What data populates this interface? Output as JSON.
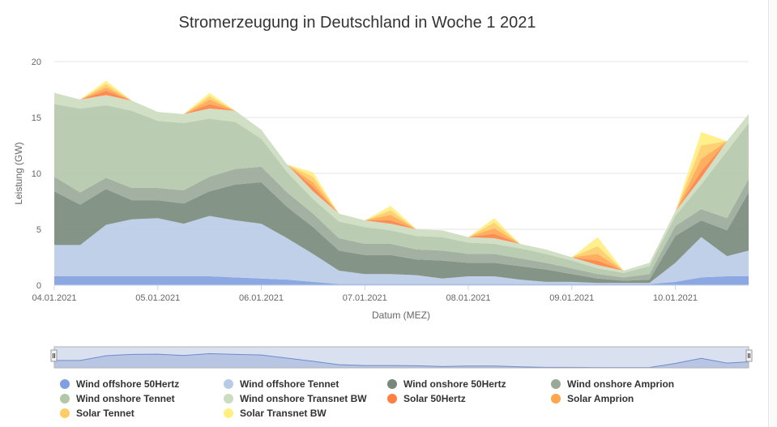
{
  "chart_data": {
    "type": "area",
    "stacked": true,
    "title": "Stromerzeugung in Deutschland in Woche 1 2021",
    "xlabel": "Datum (MEZ)",
    "ylabel": "Leistung (GW)",
    "ylim": [
      0,
      20
    ],
    "yticks": [
      0,
      5,
      10,
      15,
      20
    ],
    "xlim": [
      0,
      161
    ],
    "x_unit": "hours since 04.01.2021 00:00",
    "xticks": [
      {
        "value": 0,
        "label": "04.01.2021"
      },
      {
        "value": 24,
        "label": "05.01.2021"
      },
      {
        "value": 48,
        "label": "06.01.2021"
      },
      {
        "value": 72,
        "label": "07.01.2021"
      },
      {
        "value": 96,
        "label": "08.01.2021"
      },
      {
        "value": 120,
        "label": "09.01.2021"
      },
      {
        "value": 144,
        "label": "10.01.2021"
      }
    ],
    "x": [
      0,
      6,
      12,
      18,
      24,
      30,
      36,
      42,
      48,
      54,
      60,
      66,
      72,
      78,
      84,
      90,
      96,
      102,
      108,
      114,
      120,
      126,
      132,
      138,
      144,
      150,
      156,
      161
    ],
    "series": [
      {
        "name": "Wind offshore 50Hertz",
        "color": "#7f9fdf",
        "values": [
          0.8,
          0.8,
          0.8,
          0.8,
          0.8,
          0.8,
          0.8,
          0.7,
          0.6,
          0.5,
          0.3,
          0.1,
          0.1,
          0.1,
          0.1,
          0.1,
          0.1,
          0.1,
          0.1,
          0.1,
          0.1,
          0.1,
          0.1,
          0.1,
          0.3,
          0.7,
          0.8,
          0.8
        ]
      },
      {
        "name": "Wind offshore Tennet",
        "color": "#b8cbe6",
        "values": [
          2.8,
          2.8,
          4.6,
          5.1,
          5.2,
          4.7,
          5.4,
          5.1,
          4.9,
          3.7,
          2.5,
          1.2,
          0.9,
          0.9,
          0.8,
          0.5,
          0.7,
          0.7,
          0.4,
          0.2,
          0.2,
          0.1,
          0.1,
          0.1,
          1.7,
          3.6,
          1.8,
          2.3
        ]
      },
      {
        "name": "Wind onshore 50Hertz",
        "color": "#77887a",
        "values": [
          4.8,
          3.6,
          3.2,
          1.7,
          1.6,
          1.8,
          2.2,
          3.2,
          3.7,
          2.8,
          2.4,
          1.8,
          1.7,
          1.7,
          1.4,
          1.6,
          1.2,
          1.2,
          1.2,
          1.1,
          0.7,
          0.4,
          0.2,
          0.3,
          2.4,
          1.5,
          2.3,
          5.2
        ]
      },
      {
        "name": "Wind onshore Amprion",
        "color": "#98a998",
        "values": [
          1.3,
          1.1,
          1.0,
          1.1,
          1.1,
          1.2,
          1.3,
          1.4,
          1.4,
          1.3,
          1.2,
          1.1,
          1.0,
          1.0,
          0.9,
          0.9,
          0.8,
          0.8,
          0.7,
          0.6,
          0.5,
          0.4,
          0.3,
          0.5,
          0.9,
          1.0,
          1.1,
          1.2
        ]
      },
      {
        "name": "Wind onshore Tennet",
        "color": "#b3c7a8",
        "values": [
          6.5,
          7.5,
          6.5,
          6.9,
          6.0,
          6.0,
          5.2,
          4.2,
          2.5,
          1.8,
          1.3,
          1.5,
          1.5,
          1.2,
          1.2,
          1.2,
          1.0,
          0.9,
          0.9,
          0.8,
          0.7,
          0.5,
          0.4,
          0.7,
          0.9,
          2.2,
          6.0,
          5.0
        ]
      },
      {
        "name": "Wind onshore Transnet BW",
        "color": "#ccdcbf",
        "values": [
          1.0,
          0.8,
          0.9,
          0.9,
          0.8,
          0.8,
          0.9,
          1.0,
          0.8,
          0.7,
          0.7,
          0.7,
          0.6,
          0.6,
          0.6,
          0.6,
          0.5,
          0.5,
          0.4,
          0.4,
          0.3,
          0.3,
          0.2,
          0.3,
          0.4,
          0.6,
          0.9,
          0.8
        ]
      },
      {
        "name": "Solar 50Hertz",
        "color": "#ff7f3f",
        "values": [
          0,
          0,
          0.4,
          0,
          0,
          0,
          0.4,
          0,
          0,
          0,
          0.4,
          0,
          0,
          0.3,
          0,
          0,
          0,
          0.4,
          0,
          0,
          0,
          0.4,
          0,
          0,
          0,
          0.6,
          0,
          0
        ]
      },
      {
        "name": "Solar Amprion",
        "color": "#ffa64d",
        "values": [
          0,
          0,
          0.3,
          0,
          0,
          0,
          0.4,
          0,
          0,
          0,
          0.4,
          0,
          0,
          0.5,
          0,
          0,
          0,
          0.5,
          0,
          0,
          0,
          0.6,
          0,
          0,
          0,
          1.1,
          0,
          0
        ]
      },
      {
        "name": "Solar Tennet",
        "color": "#ffcc66",
        "values": [
          0,
          0,
          0.3,
          0,
          0,
          0,
          0.3,
          0,
          0,
          0,
          0.5,
          0,
          0,
          0.4,
          0,
          0,
          0,
          0.5,
          0,
          0,
          0,
          0.7,
          0,
          0,
          0,
          1.2,
          0,
          0
        ]
      },
      {
        "name": "Solar Transnet BW",
        "color": "#ffee80",
        "values": [
          0,
          0,
          0.3,
          0,
          0,
          0,
          0.3,
          0,
          0,
          0,
          0.4,
          0,
          0,
          0.4,
          0,
          0,
          0,
          0.4,
          0,
          0,
          0,
          0.8,
          0,
          0,
          0,
          1.2,
          0,
          0
        ]
      }
    ],
    "navigator": {
      "series": "Wind offshore Tennet",
      "range": [
        0,
        161
      ]
    },
    "legend_position": "bottom"
  }
}
